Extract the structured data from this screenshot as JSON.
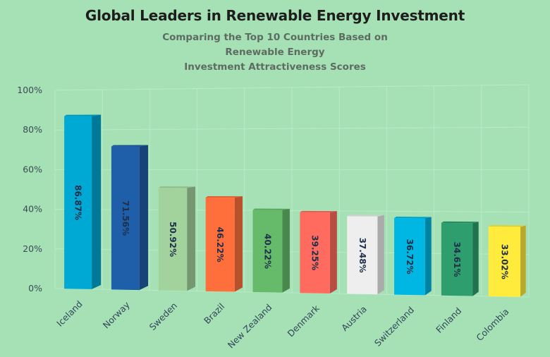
{
  "chart_data": {
    "type": "bar",
    "style": "3d-column",
    "title": "Global Leaders in Renewable Energy Investment",
    "subtitle_line1": "Comparing the Top 10 Countries Based on Renewable Energy",
    "subtitle_line2": "Investment Attractiveness Scores",
    "xlabel": "",
    "ylabel": "",
    "ylim": [
      0,
      100
    ],
    "grid": true,
    "legend": "none",
    "yticks": [
      "0%",
      "20%",
      "40%",
      "60%",
      "80%",
      "100%"
    ],
    "ytick_values": [
      0,
      20,
      40,
      60,
      80,
      100
    ],
    "categories": [
      "Iceland",
      "Norway",
      "Sweden",
      "Brazil",
      "New Zealand",
      "Denmark",
      "Austria",
      "Switzerland",
      "Finland",
      "Colombia"
    ],
    "values": [
      86.87,
      71.56,
      50.92,
      46.22,
      40.22,
      39.25,
      37.48,
      36.72,
      34.61,
      33.02
    ],
    "data_labels": [
      "86.87%",
      "71.56%",
      "50.92%",
      "46.22%",
      "40.22%",
      "39.25%",
      "37.48%",
      "36.72%",
      "34.61%",
      "33.02%"
    ],
    "colors": [
      "#00a8d4",
      "#1f5ea8",
      "#a2d39c",
      "#ff6f3c",
      "#66bb6a",
      "#ff6b5e",
      "#eeeeee",
      "#00b6e3",
      "#2e9e6e",
      "#ffeb3b"
    ]
  }
}
